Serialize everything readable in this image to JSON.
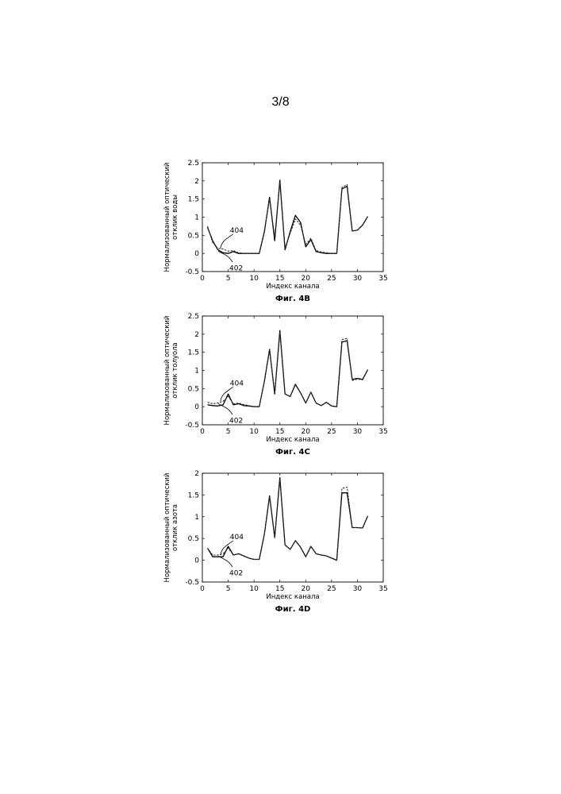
{
  "page_number": "3/8",
  "colors": {
    "line_402": "#000000",
    "line_404": "#333333",
    "frame": "#000000"
  },
  "chart_data": [
    {
      "type": "line",
      "caption": "Фиг. 4B",
      "xlabel": "Индекс канала",
      "ylabel_lines": [
        "Нормализованный оптический",
        "отклик воды"
      ],
      "xlim": [
        0,
        35
      ],
      "ylim": [
        -0.5,
        2.5
      ],
      "xticks": [
        0,
        5,
        10,
        15,
        20,
        25,
        30,
        35
      ],
      "yticks": [
        -0.5,
        0,
        0.5,
        1,
        1.5,
        2,
        2.5
      ],
      "ytick_labels": [
        "-0.5",
        "0",
        "0.5",
        "1",
        "1.5",
        "2",
        "2.5"
      ],
      "grid": false,
      "annotations": [
        {
          "label": "404",
          "target_x": 3.5,
          "target_y": 0.14
        },
        {
          "label": "402",
          "target_x": 4,
          "target_y": 0.02
        }
      ],
      "series": [
        {
          "id": "402",
          "style": "solid",
          "x": [
            1,
            2,
            3,
            4,
            5,
            6,
            7,
            8,
            9,
            10,
            11,
            12,
            13,
            14,
            15,
            16,
            17,
            18,
            19,
            20,
            21,
            22,
            23,
            24,
            25,
            26,
            27,
            28,
            29,
            30,
            31,
            32
          ],
          "y": [
            0.72,
            0.35,
            0.1,
            0.02,
            0.0,
            0.05,
            0.0,
            0.0,
            0.0,
            0.0,
            0.0,
            0.6,
            1.55,
            0.35,
            2.02,
            0.1,
            0.6,
            1.05,
            0.85,
            0.18,
            0.38,
            0.05,
            0.02,
            0.0,
            0.0,
            0.0,
            1.78,
            1.85,
            0.62,
            0.64,
            0.78,
            1.02
          ]
        },
        {
          "id": "404",
          "style": "dashed",
          "x": [
            1,
            2,
            3,
            4,
            5,
            6,
            7,
            8,
            9,
            10,
            11,
            12,
            13,
            14,
            15,
            16,
            17,
            18,
            19,
            20,
            21,
            22,
            23,
            24,
            25,
            26,
            27,
            28,
            29,
            30,
            31,
            32
          ],
          "y": [
            0.75,
            0.3,
            0.14,
            0.12,
            0.06,
            0.08,
            0.02,
            0.0,
            0.0,
            0.0,
            0.0,
            0.62,
            1.5,
            0.45,
            1.95,
            0.15,
            0.55,
            0.95,
            0.78,
            0.25,
            0.42,
            0.08,
            0.04,
            0.02,
            0.0,
            0.0,
            1.82,
            1.9,
            0.62,
            0.64,
            0.78,
            1.02
          ]
        }
      ]
    },
    {
      "type": "line",
      "caption": "Фиг. 4C",
      "xlabel": "Индекс канала",
      "ylabel_lines": [
        "Нормализованный оптический",
        "отклик толуола"
      ],
      "xlim": [
        0,
        35
      ],
      "ylim": [
        -0.5,
        2.5
      ],
      "xticks": [
        0,
        5,
        10,
        15,
        20,
        25,
        30,
        35
      ],
      "yticks": [
        -0.5,
        0,
        0.5,
        1,
        1.5,
        2,
        2.5
      ],
      "ytick_labels": [
        "-0.5",
        "0",
        "0.5",
        "1",
        "1.5",
        "2",
        "2.5"
      ],
      "grid": false,
      "annotations": [
        {
          "label": "404",
          "target_x": 3.5,
          "target_y": 0.15
        },
        {
          "label": "402",
          "target_x": 4,
          "target_y": 0.04
        }
      ],
      "series": [
        {
          "id": "402",
          "style": "solid",
          "x": [
            1,
            2,
            3,
            4,
            5,
            6,
            7,
            8,
            9,
            10,
            11,
            12,
            13,
            14,
            15,
            16,
            17,
            18,
            19,
            20,
            21,
            22,
            23,
            24,
            25,
            26,
            27,
            28,
            29,
            30,
            31,
            32
          ],
          "y": [
            0.05,
            0.03,
            0.02,
            0.05,
            0.35,
            0.05,
            0.08,
            0.03,
            0.02,
            0.0,
            0.0,
            0.7,
            1.58,
            0.35,
            2.1,
            0.35,
            0.28,
            0.62,
            0.38,
            0.1,
            0.4,
            0.1,
            0.03,
            0.12,
            0.02,
            0.0,
            1.78,
            1.82,
            0.75,
            0.78,
            0.75,
            1.02
          ]
        },
        {
          "id": "404",
          "style": "dashed",
          "x": [
            1,
            2,
            3,
            4,
            5,
            6,
            7,
            8,
            9,
            10,
            11,
            12,
            13,
            14,
            15,
            16,
            17,
            18,
            19,
            20,
            21,
            22,
            23,
            24,
            25,
            26,
            27,
            28,
            29,
            30,
            31,
            32
          ],
          "y": [
            0.12,
            0.08,
            0.1,
            0.15,
            0.28,
            0.08,
            0.1,
            0.06,
            0.03,
            0.0,
            0.0,
            0.7,
            1.55,
            0.38,
            2.05,
            0.35,
            0.28,
            0.6,
            0.38,
            0.1,
            0.4,
            0.1,
            0.03,
            0.12,
            0.02,
            0.0,
            1.85,
            1.88,
            0.72,
            0.76,
            0.74,
            1.02
          ]
        }
      ]
    },
    {
      "type": "line",
      "caption": "Фиг. 4D",
      "xlabel": "Индекс канала",
      "ylabel_lines": [
        "Нормализованный оптический",
        "отклик азота"
      ],
      "xlim": [
        0,
        35
      ],
      "ylim": [
        -0.5,
        2
      ],
      "xticks": [
        0,
        5,
        10,
        15,
        20,
        25,
        30,
        35
      ],
      "yticks": [
        -0.5,
        0,
        0.5,
        1,
        1.5,
        2
      ],
      "ytick_labels": [
        "-0.5",
        "0",
        "0.5",
        "1",
        "1.5",
        "2"
      ],
      "grid": false,
      "annotations": [
        {
          "label": "404",
          "target_x": 3.5,
          "target_y": 0.12
        },
        {
          "label": "402",
          "target_x": 4,
          "target_y": 0.06
        }
      ],
      "series": [
        {
          "id": "402",
          "style": "solid",
          "x": [
            1,
            2,
            3,
            4,
            5,
            6,
            7,
            8,
            9,
            10,
            11,
            12,
            13,
            14,
            15,
            16,
            17,
            18,
            19,
            20,
            21,
            22,
            23,
            24,
            25,
            26,
            27,
            28,
            29,
            30,
            31,
            32
          ],
          "y": [
            0.28,
            0.08,
            0.08,
            0.08,
            0.32,
            0.12,
            0.15,
            0.1,
            0.05,
            0.02,
            0.02,
            0.6,
            1.48,
            0.52,
            1.9,
            0.35,
            0.25,
            0.45,
            0.3,
            0.08,
            0.32,
            0.15,
            0.12,
            0.1,
            0.05,
            0.0,
            1.55,
            1.55,
            0.75,
            0.75,
            0.74,
            1.02
          ]
        },
        {
          "id": "404",
          "style": "dashed",
          "x": [
            1,
            2,
            3,
            4,
            5,
            6,
            7,
            8,
            9,
            10,
            11,
            12,
            13,
            14,
            15,
            16,
            17,
            18,
            19,
            20,
            21,
            22,
            23,
            24,
            25,
            26,
            27,
            28,
            29,
            30,
            31,
            32
          ],
          "y": [
            0.28,
            0.12,
            0.12,
            0.15,
            0.28,
            0.12,
            0.15,
            0.1,
            0.05,
            0.02,
            0.02,
            0.6,
            1.45,
            0.52,
            1.85,
            0.35,
            0.25,
            0.45,
            0.3,
            0.08,
            0.32,
            0.15,
            0.12,
            0.1,
            0.05,
            0.0,
            1.65,
            1.68,
            0.75,
            0.75,
            0.74,
            1.02
          ]
        }
      ]
    }
  ]
}
